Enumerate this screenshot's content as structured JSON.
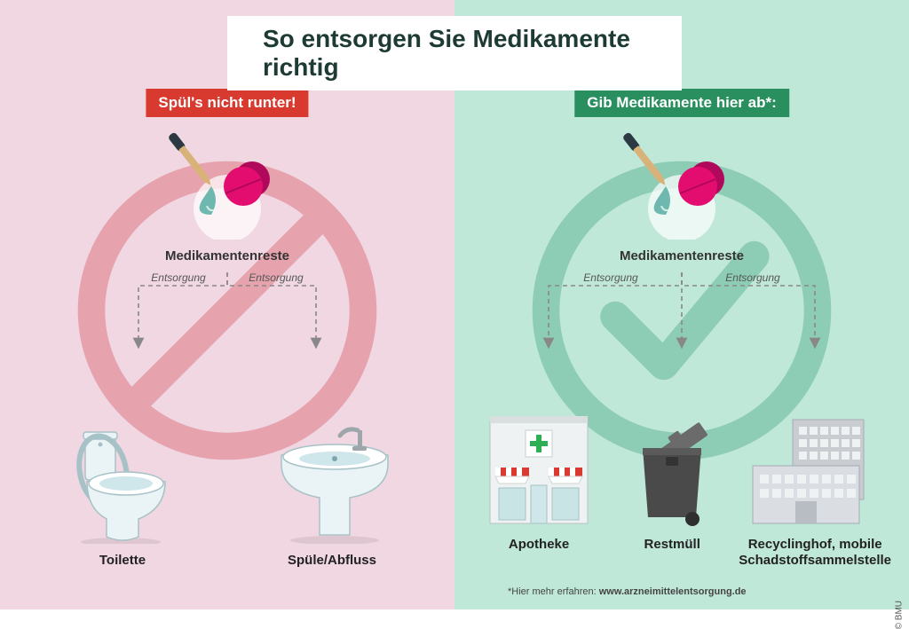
{
  "title": "So entsorgen Sie Medikamente richtig",
  "copyright": "© BMU",
  "common": {
    "meds_label": "Medikamentenreste",
    "arrow_label": "Entsorgung",
    "colors": {
      "dropper_tip": "#2b3a42",
      "dropper_body": "#d9b27a",
      "drop": "#6eb8b0",
      "pill": "#e20d6e",
      "pill_shade": "#b0085a",
      "arrow": "#888888",
      "text_dark": "#2b2b2b",
      "porcelain": "#eaf4f6",
      "porcelain_line": "#a7c2c7",
      "grey_building": "#c9ccd1",
      "grey_building_line": "#a6abb3",
      "bin_body": "#4a4a4a",
      "bin_lid": "#6b6b6b",
      "pharma_wall": "#eef2f2",
      "pharma_awning": "#d83a2f",
      "pharma_cross": "#2fae54"
    }
  },
  "left": {
    "badge": "Spül's nicht runter!",
    "badge_color": "#d83a2f",
    "symbol_color": "#e6a3ad",
    "bg": "#f0d7e2",
    "items": [
      {
        "key": "toilet",
        "label": "Toilette"
      },
      {
        "key": "sink",
        "label": "Spüle/Abfluss"
      }
    ]
  },
  "right": {
    "badge": "Gib Medikamente hier ab*:",
    "badge_color": "#2a8f5e",
    "symbol_color": "#8ecdb5",
    "bg": "#c0e8d9",
    "items": [
      {
        "key": "pharmacy",
        "label": "Apotheke"
      },
      {
        "key": "bin",
        "label": "Restmüll"
      },
      {
        "key": "facility",
        "label": "Recyclinghof, mobile\nSchadstoffsammelstelle"
      }
    ],
    "footnote_prefix": "*Hier mehr erfahren: ",
    "footnote_link": "www.arzneimittelentsorgung.de"
  }
}
